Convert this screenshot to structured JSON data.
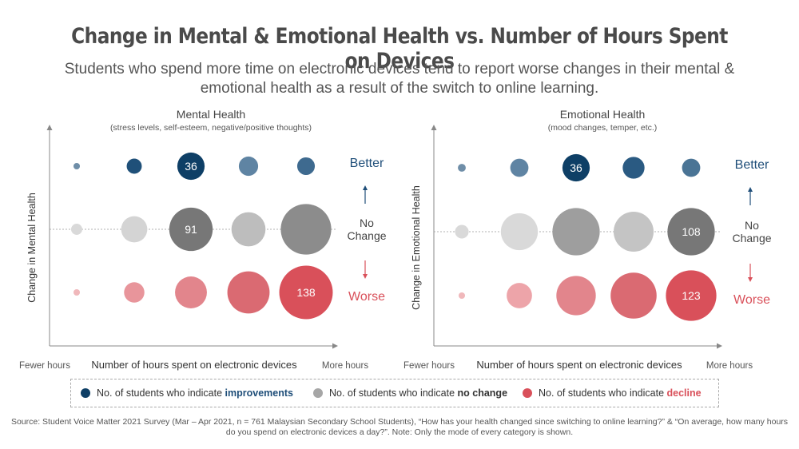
{
  "title": "Change in Mental & Emotional Health vs. Number of Hours Spent on Devices",
  "subtitle": "Students who spend more time on electronic devices tend to report worse changes in their mental & emotional health as a result of the switch to online learning.",
  "colors": {
    "improvement": "#0e3f66",
    "no_change": "#a6a6a6",
    "decline": "#d9505a",
    "better_label": "#1f4e79",
    "worse_label": "#d9505a"
  },
  "legend": {
    "improvements": {
      "prefix": "No. of students who indicate ",
      "bold": "improvements"
    },
    "no_change": {
      "prefix": "No. of students who indicate ",
      "bold": "no change"
    },
    "decline": {
      "prefix": "No. of students who indicate ",
      "bold": "decline"
    }
  },
  "source": "Source: Student Voice Matter 2021 Survey (Mar – Apr 2021, n = 761 Malaysian Secondary School Students), “How has your health changed since switching to online learning?” & “On average, how many hours do you spend on electronic devices a day?”. Note: Only the mode of every category is shown.",
  "chart_data": [
    {
      "type": "scatter",
      "title": "Mental Health",
      "subtitle": "(stress levels, self-esteem, negative/positive thoughts)",
      "xlabel": "Number of hours spent on electronic devices",
      "ylabel": "Change in  Mental Health",
      "x_start_label": "Fewer hours",
      "x_end_label": "More hours",
      "row_labels": {
        "better": "Better",
        "no_change": "No\nChange",
        "worse": "Worse"
      },
      "categories": [
        "1",
        "2",
        "3",
        "4",
        "5"
      ],
      "series": [
        {
          "name": "Better",
          "values": [
            2,
            11,
            36,
            18,
            15
          ],
          "labels": [
            null,
            null,
            "36",
            null,
            null
          ]
        },
        {
          "name": "No Change",
          "values": [
            6,
            33,
            91,
            56,
            123
          ],
          "labels": [
            null,
            null,
            "91",
            null,
            null
          ]
        },
        {
          "name": "Worse",
          "values": [
            2,
            20,
            49,
            86,
            138
          ],
          "labels": [
            null,
            null,
            null,
            null,
            "138"
          ]
        }
      ],
      "shade_opacity": [
        0.45,
        0.6,
        0.8,
        0.6,
        0.75
      ]
    },
    {
      "type": "scatter",
      "title": "Emotional Health",
      "subtitle": "(mood changes, temper, etc.)",
      "xlabel": "Number of hours spent on electronic devices",
      "ylabel": "Change in Emotional  Health",
      "x_start_label": "Fewer hours",
      "x_end_label": "More hours",
      "row_labels": {
        "better": "Better",
        "no_change": "No\nChange",
        "worse": "Worse"
      },
      "categories": [
        "1",
        "2",
        "3",
        "4",
        "5"
      ],
      "series": [
        {
          "name": "Better",
          "values": [
            3,
            16,
            36,
            23,
            16
          ],
          "labels": [
            null,
            null,
            "36",
            null,
            null
          ]
        },
        {
          "name": "No Change",
          "values": [
            9,
            66,
            108,
            77,
            108
          ],
          "labels": [
            null,
            null,
            null,
            null,
            "108"
          ]
        },
        {
          "name": "Worse",
          "values": [
            2,
            31,
            75,
            102,
            123
          ],
          "labels": [
            null,
            null,
            null,
            null,
            "123"
          ]
        }
      ],
      "shade_opacity": [
        0.45,
        0.6,
        0.5,
        0.6,
        0.8
      ]
    }
  ]
}
